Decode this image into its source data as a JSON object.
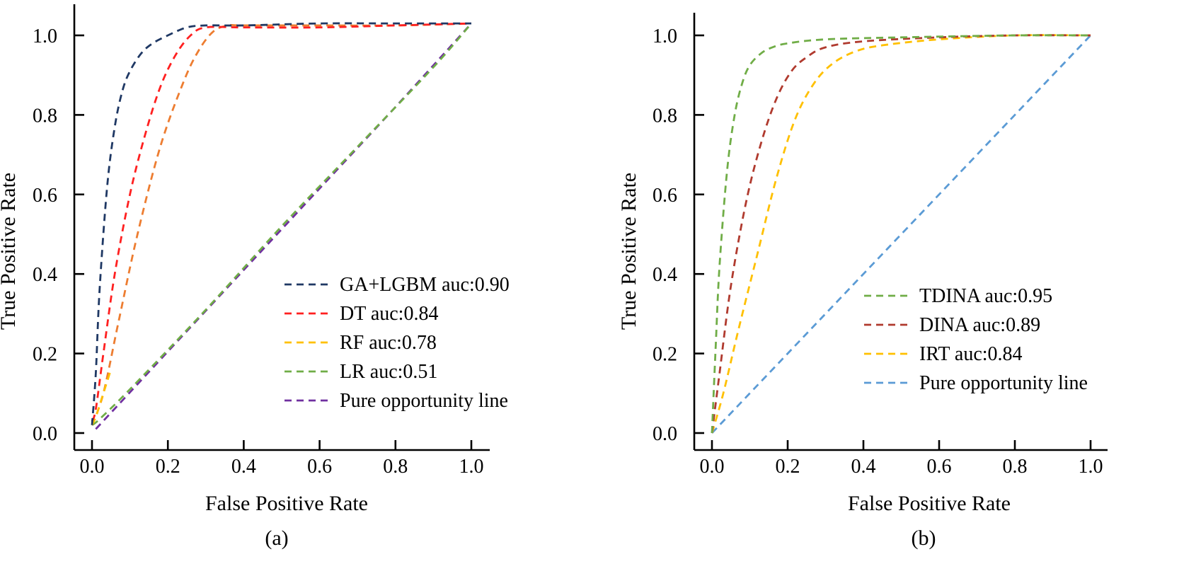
{
  "chart_data": [
    {
      "type": "line",
      "subfigure_label": "(a)",
      "xlabel": "False Positive Rate",
      "ylabel": "True Positive Rate",
      "xlim": [
        0.0,
        1.0
      ],
      "ylim": [
        0.0,
        1.0
      ],
      "xticks": [
        "0.0",
        "0.2",
        "0.4",
        "0.6",
        "0.8",
        "1.0"
      ],
      "yticks": [
        "0.0",
        "0.2",
        "0.4",
        "0.6",
        "0.8",
        "1.0"
      ],
      "legend_position": "bottom-right",
      "grid": false,
      "series": [
        {
          "name": "GA+LGBM auc:0.90",
          "color": "#1f3864",
          "x": [
            0.0,
            0.01,
            0.02,
            0.04,
            0.06,
            0.08,
            0.1,
            0.13,
            0.16,
            0.2,
            0.25,
            0.3,
            0.4,
            0.6,
            0.8,
            1.0
          ],
          "y": [
            0.02,
            0.15,
            0.36,
            0.62,
            0.77,
            0.86,
            0.91,
            0.955,
            0.98,
            1.0,
            1.02,
            1.025,
            1.025,
            1.03,
            1.03,
            1.03
          ]
        },
        {
          "name": "DT auc:0.84",
          "color": "#ff2020",
          "x": [
            0.0,
            0.01,
            0.03,
            0.06,
            0.1,
            0.14,
            0.18,
            0.22,
            0.26,
            0.3,
            0.4,
            0.6,
            0.8,
            1.0
          ],
          "y": [
            0.03,
            0.06,
            0.2,
            0.4,
            0.6,
            0.75,
            0.87,
            0.95,
            1.0,
            1.02,
            1.02,
            1.02,
            1.025,
            1.03
          ]
        },
        {
          "name": "RF auc:0.78",
          "color": "#ffc000",
          "x": [
            0.0,
            0.01,
            0.02,
            0.03,
            0.04,
            0.05
          ],
          "y": [
            0.02,
            0.04,
            0.07,
            0.1,
            0.13,
            0.16
          ]
        },
        {
          "name": "",
          "color": "#ed7d31",
          "x": [
            0.0,
            0.03,
            0.07,
            0.12,
            0.18,
            0.24,
            0.28,
            0.32,
            0.36,
            0.4,
            0.6,
            0.8,
            1.0
          ],
          "y": [
            0.02,
            0.1,
            0.28,
            0.5,
            0.72,
            0.88,
            0.96,
            1.01,
            1.025,
            1.025,
            1.025,
            1.025,
            1.03
          ]
        },
        {
          "name": "LR auc:0.51",
          "color": "#70ad47",
          "x": [
            0.0,
            0.02,
            0.1,
            0.3,
            0.5,
            0.7,
            0.9,
            1.0
          ],
          "y": [
            0.02,
            0.035,
            0.11,
            0.31,
            0.52,
            0.72,
            0.92,
            1.03
          ]
        },
        {
          "name": "Pure opportunity line",
          "color": "#7030a0",
          "x": [
            0.01,
            0.2,
            0.4,
            0.6,
            0.8,
            1.0
          ],
          "y": [
            0.01,
            0.205,
            0.41,
            0.615,
            0.82,
            1.03
          ]
        }
      ]
    },
    {
      "type": "line",
      "subfigure_label": "(b)",
      "xlabel": "False Positive Rate",
      "ylabel": "True Positive Rate",
      "xlim": [
        0.0,
        1.0
      ],
      "ylim": [
        0.0,
        1.0
      ],
      "xticks": [
        "0.0",
        "0.2",
        "0.4",
        "0.6",
        "0.8",
        "1.0"
      ],
      "yticks": [
        "0.0",
        "0.2",
        "0.4",
        "0.6",
        "0.8",
        "1.0"
      ],
      "legend_position": "bottom-right",
      "grid": false,
      "series": [
        {
          "name": "TDINA auc:0.95",
          "color": "#70ad47",
          "x": [
            0.0,
            0.01,
            0.02,
            0.04,
            0.06,
            0.08,
            0.1,
            0.13,
            0.16,
            0.2,
            0.3,
            0.5,
            0.8,
            1.0
          ],
          "y": [
            0.0,
            0.22,
            0.42,
            0.66,
            0.8,
            0.88,
            0.925,
            0.955,
            0.97,
            0.98,
            0.99,
            0.995,
            1.0,
            1.0
          ]
        },
        {
          "name": "DINA auc:0.89",
          "color": "#b03a2e",
          "x": [
            0.0,
            0.02,
            0.05,
            0.09,
            0.13,
            0.17,
            0.21,
            0.25,
            0.3,
            0.4,
            0.6,
            0.8,
            1.0
          ],
          "y": [
            0.0,
            0.15,
            0.37,
            0.58,
            0.73,
            0.84,
            0.91,
            0.945,
            0.97,
            0.985,
            0.995,
            1.0,
            1.0
          ]
        },
        {
          "name": "IRT auc:0.84",
          "color": "#ffc000",
          "x": [
            0.0,
            0.03,
            0.07,
            0.12,
            0.17,
            0.22,
            0.27,
            0.32,
            0.38,
            0.45,
            0.6,
            0.8,
            1.0
          ],
          "y": [
            0.0,
            0.1,
            0.26,
            0.45,
            0.64,
            0.79,
            0.88,
            0.93,
            0.96,
            0.975,
            0.99,
            1.0,
            1.0
          ]
        },
        {
          "name": "Pure opportunity line",
          "color": "#5b9bd5",
          "x": [
            0.0,
            1.0
          ],
          "y": [
            0.0,
            1.0
          ]
        }
      ]
    }
  ]
}
